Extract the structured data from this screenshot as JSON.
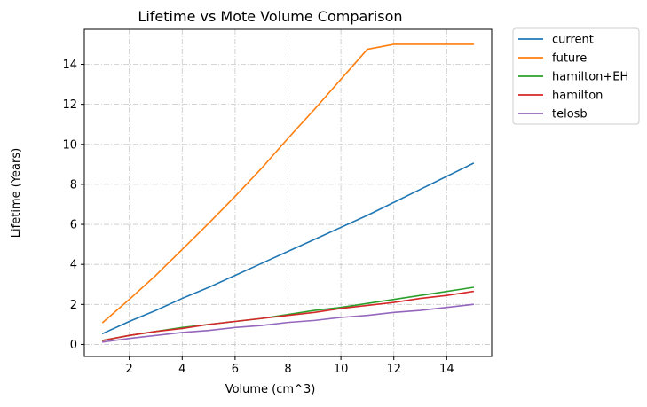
{
  "chart_data": {
    "type": "line",
    "title": "Lifetime vs Mote Volume Comparison",
    "xlabel": "Volume (cm^3)",
    "ylabel": "Lifetime (Years)",
    "xlim": [
      0.3,
      15.7
    ],
    "ylim": [
      -0.6,
      15.75
    ],
    "xticks": [
      2,
      4,
      6,
      8,
      10,
      12,
      14
    ],
    "yticks": [
      0,
      2,
      4,
      6,
      8,
      10,
      12,
      14
    ],
    "grid": true,
    "legend_position": "outside-top-right",
    "x": [
      1,
      2,
      3,
      4,
      5,
      6,
      7,
      8,
      9,
      10,
      11,
      12,
      13,
      14,
      15
    ],
    "series": [
      {
        "name": "current",
        "color": "#1f77b4",
        "values": [
          0.55,
          1.15,
          1.7,
          2.3,
          2.85,
          3.45,
          4.05,
          4.65,
          5.25,
          5.85,
          6.45,
          7.1,
          7.75,
          8.4,
          9.05
        ]
      },
      {
        "name": "future",
        "color": "#ff7f0e",
        "values": [
          1.1,
          2.25,
          3.45,
          4.75,
          6.05,
          7.4,
          8.8,
          10.3,
          11.75,
          13.25,
          14.75,
          15.0,
          15.0,
          15.0,
          15.0
        ]
      },
      {
        "name": "hamilton+EH",
        "color": "#2ca02c",
        "values": [
          0.2,
          0.45,
          0.65,
          0.85,
          1.0,
          1.15,
          1.3,
          1.5,
          1.7,
          1.85,
          2.05,
          2.25,
          2.45,
          2.65,
          2.85
        ]
      },
      {
        "name": "hamilton",
        "color": "#d62728",
        "values": [
          0.2,
          0.45,
          0.65,
          0.8,
          1.0,
          1.15,
          1.3,
          1.45,
          1.6,
          1.8,
          1.95,
          2.1,
          2.3,
          2.45,
          2.65
        ]
      },
      {
        "name": "telosb",
        "color": "#9467bd",
        "values": [
          0.12,
          0.3,
          0.45,
          0.6,
          0.7,
          0.85,
          0.95,
          1.1,
          1.2,
          1.35,
          1.45,
          1.6,
          1.7,
          1.85,
          2.0
        ]
      }
    ]
  }
}
